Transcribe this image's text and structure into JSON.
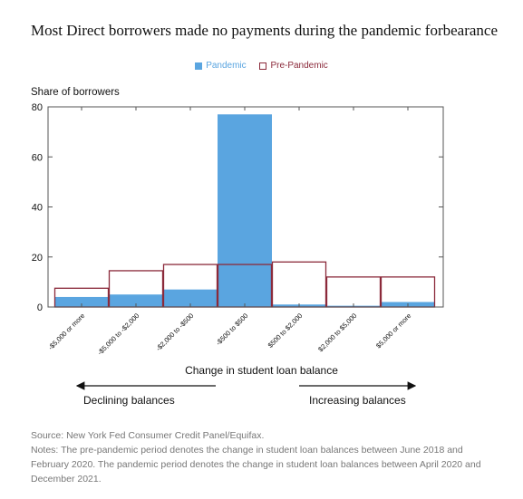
{
  "chart_data": {
    "type": "bar",
    "title": "Most Direct borrowers made no payments during the pandemic forbearance",
    "ylabel": "Share of borrowers",
    "xlabel": "Change in student loan balance",
    "ylim": [
      0,
      80
    ],
    "yticks": [
      0,
      20,
      40,
      60,
      80
    ],
    "categories": [
      "-$5,000 or more",
      "-$5,000 to -$2,000",
      "-$2,000 to -$500",
      "-$500 to $500",
      "$500 to $2,000",
      "$2,000 to $5,000",
      "$5,000 or more"
    ],
    "series": [
      {
        "name": "Pandemic",
        "color": "#5aa5e0",
        "values": [
          4,
          5,
          7,
          77,
          1,
          0.5,
          2
        ]
      },
      {
        "name": "Pre-Pandemic",
        "color": "#8b2a3b",
        "values": [
          7.5,
          14.5,
          17,
          17,
          18,
          12,
          12
        ]
      }
    ],
    "legend_position": "top-center",
    "grid": false
  },
  "annotations": {
    "declining": "Declining balances",
    "increasing": "Increasing balances"
  },
  "footer": {
    "source": "Source: New York Fed Consumer Credit Panel/Equifax.",
    "notes": "Notes: The pre-pandemic period denotes the change in student loan balances between June 2018 and February 2020. The pandemic period denotes the change in student loan balances between April 2020 and December 2021."
  }
}
